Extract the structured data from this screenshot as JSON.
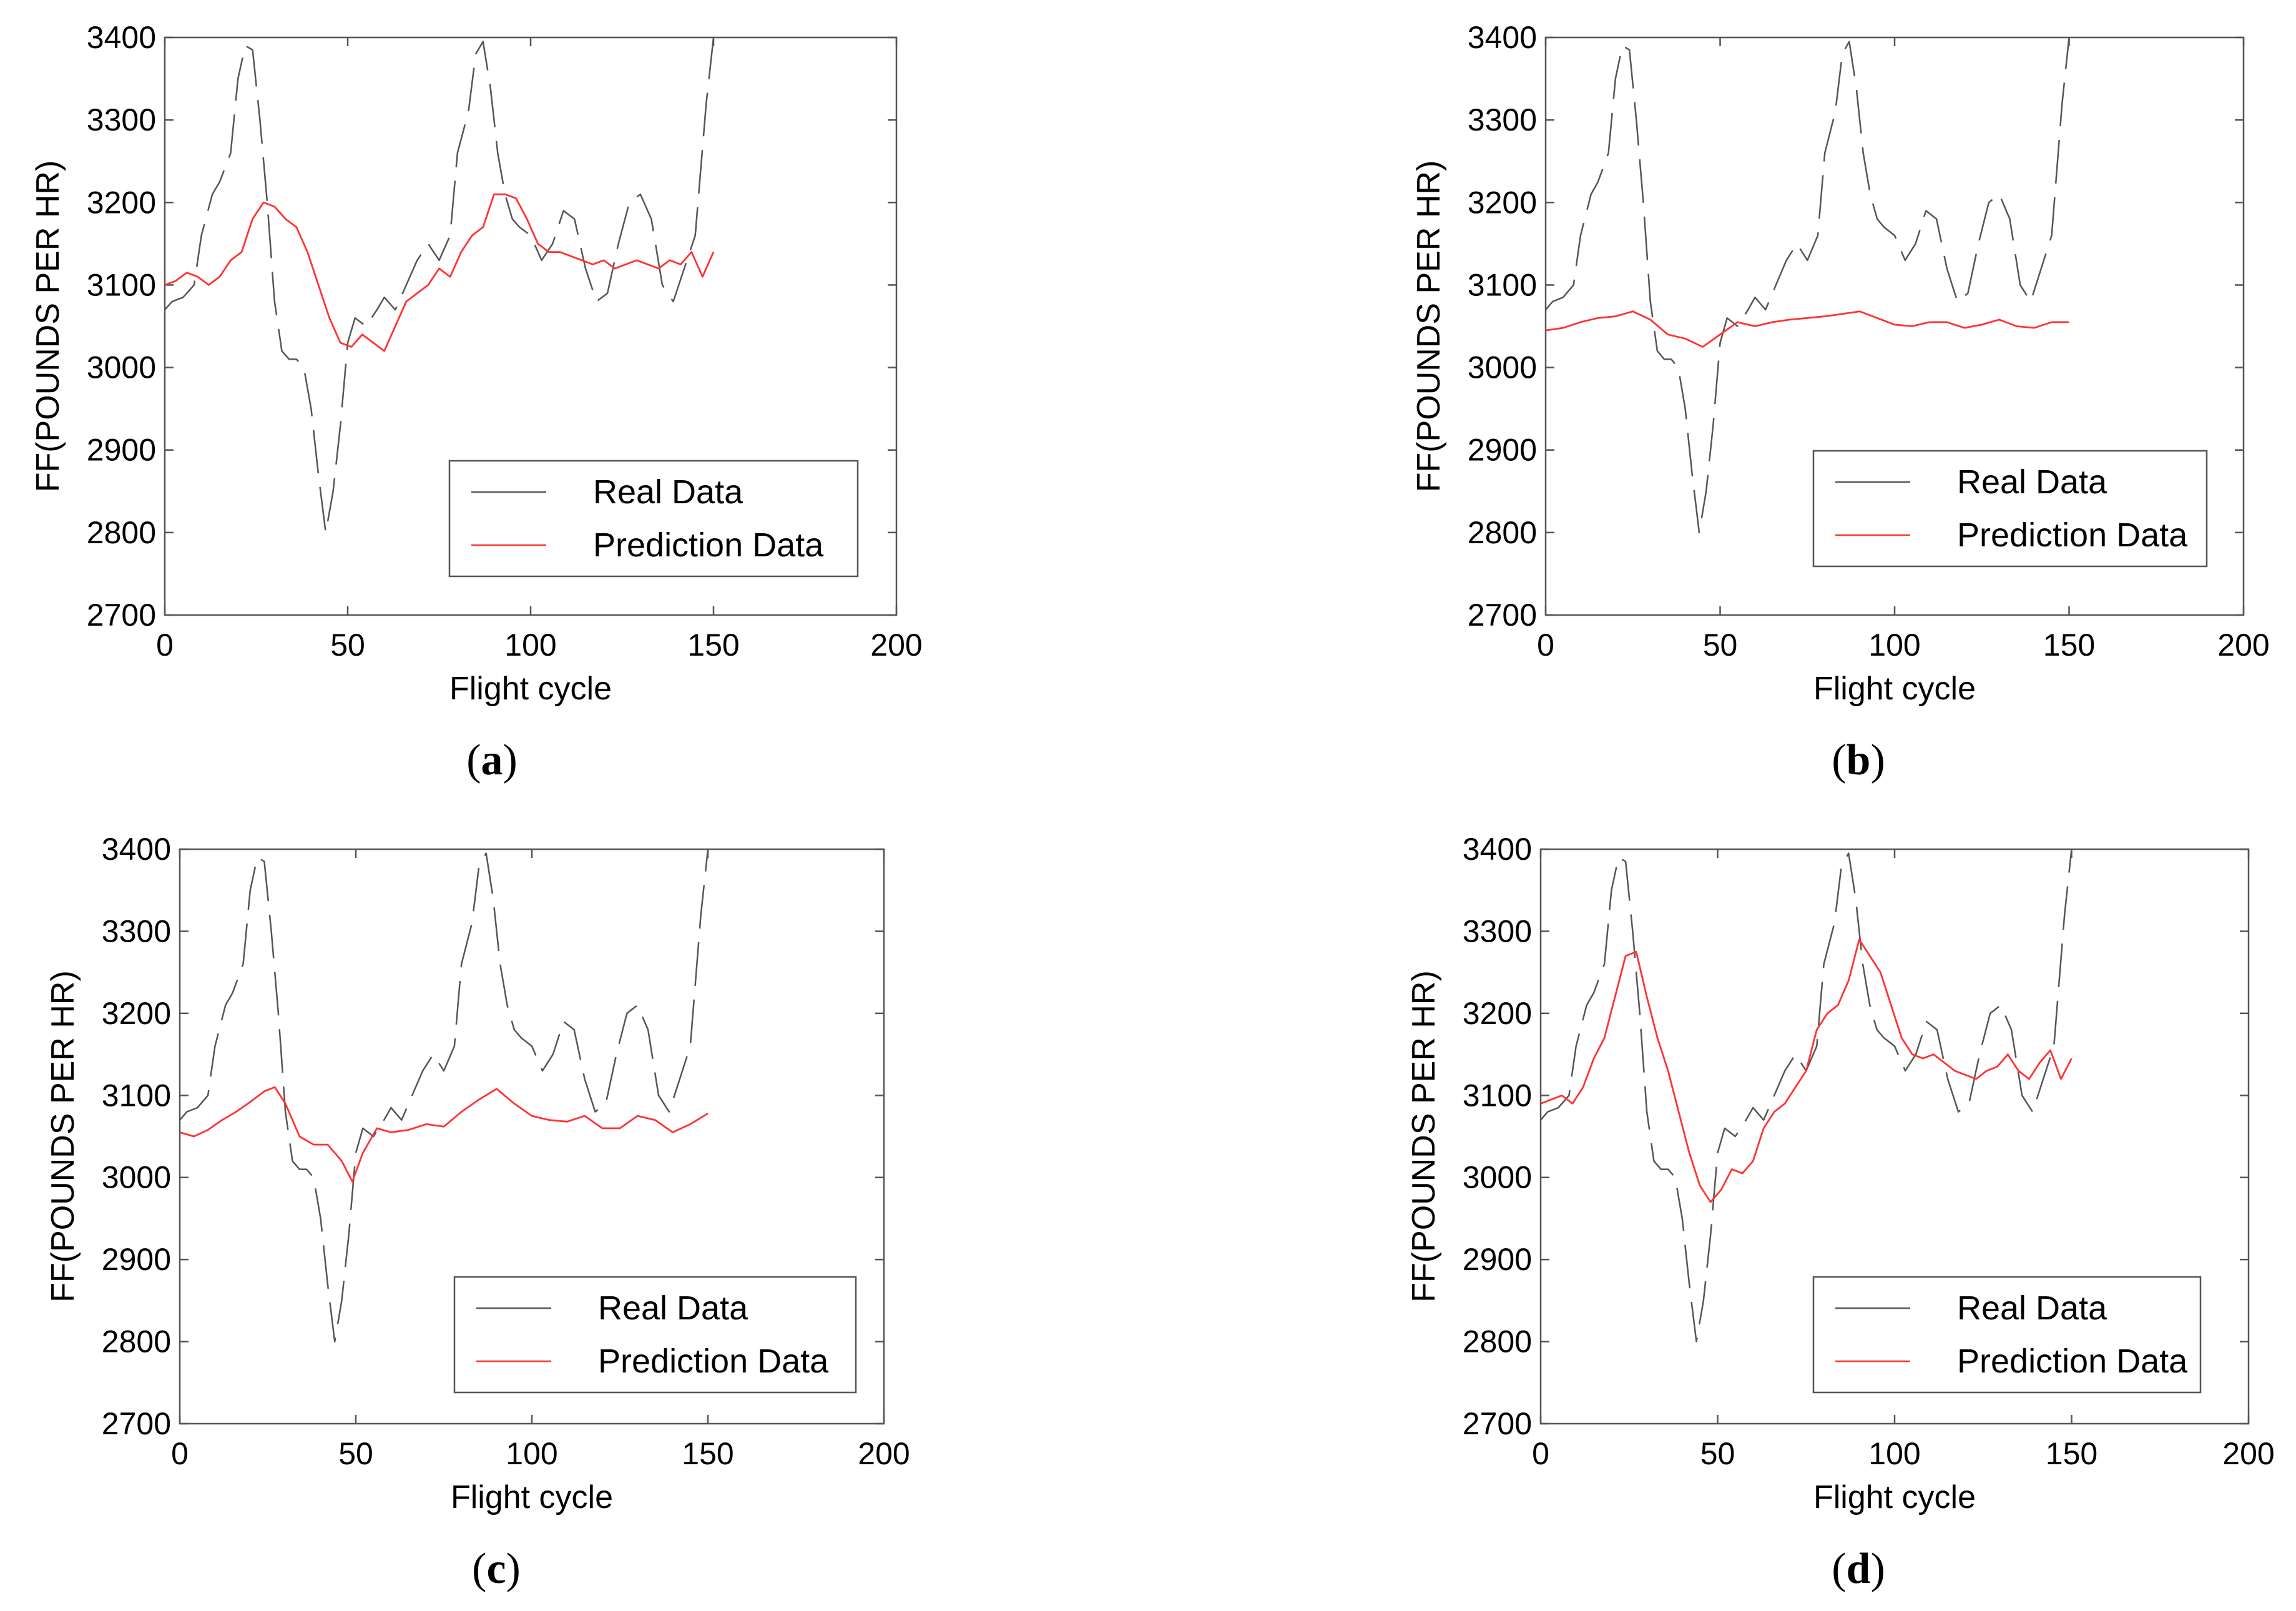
{
  "figure": {
    "panels": [
      {
        "caption_open": "(",
        "caption_letter": "a",
        "caption_close": ")",
        "chart_key": 0
      },
      {
        "caption_open": "(",
        "caption_letter": "b",
        "caption_close": ")",
        "chart_key": 1
      },
      {
        "caption_open": "(",
        "caption_letter": "c",
        "caption_close": ")",
        "chart_key": 2
      },
      {
        "caption_open": "(",
        "caption_letter": "d",
        "caption_close": ")",
        "chart_key": 3
      }
    ]
  },
  "chart_data": [
    {
      "type": "line",
      "title": "",
      "xlabel": "Flight cycle",
      "ylabel": "FF(POUNDS PER HR)",
      "xlim": [
        0,
        200
      ],
      "ylim": [
        2700,
        3400
      ],
      "xticks": [
        0,
        50,
        100,
        150,
        200
      ],
      "yticks": [
        2700,
        2800,
        2900,
        3000,
        3100,
        3200,
        3300,
        3400
      ],
      "legend_position": "lower-right",
      "series": [
        {
          "name": "Real Data",
          "color": "#555555",
          "style": "dashed",
          "x": [
            0,
            2,
            5,
            8,
            10,
            13,
            15,
            18,
            20,
            22,
            24,
            26,
            28,
            30,
            32,
            34,
            36,
            38,
            40,
            42,
            44,
            46,
            48,
            50,
            52,
            55,
            58,
            60,
            63,
            66,
            69,
            72,
            75,
            78,
            80,
            83,
            85,
            87,
            89,
            91,
            93,
            95,
            97,
            100,
            103,
            106,
            109,
            112,
            115,
            118,
            121,
            124,
            127,
            130,
            133,
            136,
            139,
            142,
            145,
            148,
            150
          ],
          "y": [
            3070,
            3080,
            3085,
            3100,
            3160,
            3210,
            3225,
            3260,
            3350,
            3390,
            3385,
            3300,
            3200,
            3080,
            3020,
            3010,
            3010,
            3000,
            2950,
            2870,
            2800,
            2850,
            2930,
            3030,
            3060,
            3050,
            3070,
            3085,
            3070,
            3100,
            3130,
            3150,
            3130,
            3160,
            3260,
            3310,
            3380,
            3395,
            3340,
            3260,
            3210,
            3180,
            3170,
            3160,
            3130,
            3150,
            3190,
            3180,
            3120,
            3080,
            3090,
            3150,
            3200,
            3210,
            3180,
            3100,
            3080,
            3120,
            3160,
            3320,
            3400
          ]
        },
        {
          "name": "Prediction Data",
          "color": "#ff3333",
          "style": "solid",
          "x": [
            0,
            3,
            6,
            9,
            12,
            15,
            18,
            21,
            24,
            27,
            30,
            33,
            36,
            39,
            42,
            45,
            48,
            51,
            54,
            57,
            60,
            63,
            66,
            69,
            72,
            75,
            78,
            81,
            84,
            87,
            90,
            93,
            96,
            99,
            102,
            105,
            108,
            111,
            114,
            117,
            120,
            123,
            126,
            129,
            132,
            135,
            138,
            141,
            144,
            147,
            150
          ],
          "y": [
            3100,
            3105,
            3115,
            3110,
            3100,
            3110,
            3130,
            3140,
            3180,
            3200,
            3195,
            3180,
            3170,
            3140,
            3100,
            3060,
            3030,
            3025,
            3040,
            3030,
            3020,
            3050,
            3080,
            3090,
            3100,
            3120,
            3110,
            3140,
            3160,
            3170,
            3210,
            3210,
            3205,
            3180,
            3150,
            3140,
            3140,
            3135,
            3130,
            3125,
            3130,
            3120,
            3125,
            3130,
            3125,
            3120,
            3130,
            3125,
            3140,
            3110,
            3140
          ]
        }
      ]
    },
    {
      "type": "line",
      "title": "",
      "xlabel": "Flight cycle",
      "ylabel": "FF(POUNDS PER HR)",
      "xlim": [
        0,
        200
      ],
      "ylim": [
        2700,
        3400
      ],
      "xticks": [
        0,
        50,
        100,
        150,
        200
      ],
      "yticks": [
        2700,
        2800,
        2900,
        3000,
        3100,
        3200,
        3300,
        3400
      ],
      "legend_position": "lower-right",
      "series": [
        {
          "name": "Real Data",
          "color": "#555555",
          "style": "dashed",
          "x": [
            0,
            2,
            5,
            8,
            10,
            13,
            15,
            18,
            20,
            22,
            24,
            26,
            28,
            30,
            32,
            34,
            36,
            38,
            40,
            42,
            44,
            46,
            48,
            50,
            52,
            55,
            58,
            60,
            63,
            66,
            69,
            72,
            75,
            78,
            80,
            83,
            85,
            87,
            89,
            91,
            93,
            95,
            97,
            100,
            103,
            106,
            109,
            112,
            115,
            118,
            121,
            124,
            127,
            130,
            133,
            136,
            139,
            142,
            145,
            148,
            150
          ],
          "y": [
            3070,
            3080,
            3085,
            3100,
            3160,
            3210,
            3225,
            3260,
            3350,
            3390,
            3385,
            3300,
            3200,
            3080,
            3020,
            3010,
            3010,
            3000,
            2950,
            2870,
            2800,
            2850,
            2930,
            3030,
            3060,
            3050,
            3070,
            3085,
            3070,
            3100,
            3130,
            3150,
            3130,
            3160,
            3260,
            3310,
            3380,
            3395,
            3340,
            3260,
            3210,
            3180,
            3170,
            3160,
            3130,
            3150,
            3190,
            3180,
            3120,
            3080,
            3090,
            3150,
            3200,
            3210,
            3180,
            3100,
            3080,
            3120,
            3160,
            3320,
            3400
          ]
        },
        {
          "name": "Prediction Data",
          "color": "#ff3333",
          "style": "solid",
          "x": [
            0,
            5,
            10,
            15,
            20,
            25,
            30,
            35,
            40,
            45,
            50,
            55,
            60,
            65,
            70,
            75,
            80,
            85,
            90,
            95,
            100,
            105,
            110,
            115,
            120,
            125,
            130,
            135,
            140,
            145,
            150
          ],
          "y": [
            3045,
            3048,
            3055,
            3060,
            3062,
            3068,
            3058,
            3040,
            3035,
            3025,
            3040,
            3055,
            3050,
            3055,
            3058,
            3060,
            3062,
            3065,
            3068,
            3060,
            3052,
            3050,
            3055,
            3055,
            3048,
            3052,
            3058,
            3050,
            3048,
            3055,
            3055
          ]
        }
      ]
    },
    {
      "type": "line",
      "title": "",
      "xlabel": "Flight cycle",
      "ylabel": "FF(POUNDS PER HR)",
      "xlim": [
        0,
        200
      ],
      "ylim": [
        2700,
        3400
      ],
      "xticks": [
        0,
        50,
        100,
        150,
        200
      ],
      "yticks": [
        2700,
        2800,
        2900,
        3000,
        3100,
        3200,
        3300,
        3400
      ],
      "legend_position": "lower-right",
      "series": [
        {
          "name": "Real Data",
          "color": "#555555",
          "style": "dashed",
          "x": [
            0,
            2,
            5,
            8,
            10,
            13,
            15,
            18,
            20,
            22,
            24,
            26,
            28,
            30,
            32,
            34,
            36,
            38,
            40,
            42,
            44,
            46,
            48,
            50,
            52,
            55,
            58,
            60,
            63,
            66,
            69,
            72,
            75,
            78,
            80,
            83,
            85,
            87,
            89,
            91,
            93,
            95,
            97,
            100,
            103,
            106,
            109,
            112,
            115,
            118,
            121,
            124,
            127,
            130,
            133,
            136,
            139,
            142,
            145,
            148,
            150
          ],
          "y": [
            3070,
            3080,
            3085,
            3100,
            3160,
            3210,
            3225,
            3260,
            3350,
            3390,
            3385,
            3300,
            3200,
            3080,
            3020,
            3010,
            3010,
            3000,
            2950,
            2870,
            2800,
            2850,
            2930,
            3030,
            3060,
            3050,
            3070,
            3085,
            3070,
            3100,
            3130,
            3150,
            3130,
            3160,
            3260,
            3310,
            3380,
            3395,
            3340,
            3260,
            3210,
            3180,
            3170,
            3160,
            3130,
            3150,
            3190,
            3180,
            3120,
            3080,
            3090,
            3150,
            3200,
            3210,
            3180,
            3100,
            3080,
            3120,
            3160,
            3320,
            3400
          ]
        },
        {
          "name": "Prediction Data",
          "color": "#ff3333",
          "style": "solid",
          "x": [
            0,
            4,
            8,
            12,
            16,
            20,
            24,
            27,
            30,
            34,
            38,
            42,
            46,
            49,
            52,
            56,
            60,
            65,
            70,
            75,
            80,
            85,
            90,
            95,
            100,
            105,
            110,
            115,
            120,
            125,
            130,
            135,
            140,
            145,
            150
          ],
          "y": [
            3055,
            3050,
            3058,
            3070,
            3080,
            3092,
            3105,
            3110,
            3090,
            3050,
            3040,
            3040,
            3020,
            2995,
            3030,
            3060,
            3055,
            3058,
            3065,
            3062,
            3080,
            3095,
            3108,
            3090,
            3075,
            3070,
            3068,
            3075,
            3060,
            3060,
            3075,
            3070,
            3055,
            3065,
            3078
          ]
        }
      ]
    },
    {
      "type": "line",
      "title": "",
      "xlabel": "Flight cycle",
      "ylabel": "FF(POUNDS PER HR)",
      "xlim": [
        0,
        200
      ],
      "ylim": [
        2700,
        3400
      ],
      "xticks": [
        0,
        50,
        100,
        150,
        200
      ],
      "yticks": [
        2700,
        2800,
        2900,
        3000,
        3100,
        3200,
        3300,
        3400
      ],
      "legend_position": "lower-right",
      "series": [
        {
          "name": "Real Data",
          "color": "#555555",
          "style": "dashed",
          "x": [
            0,
            2,
            5,
            8,
            10,
            13,
            15,
            18,
            20,
            22,
            24,
            26,
            28,
            30,
            32,
            34,
            36,
            38,
            40,
            42,
            44,
            46,
            48,
            50,
            52,
            55,
            58,
            60,
            63,
            66,
            69,
            72,
            75,
            78,
            80,
            83,
            85,
            87,
            89,
            91,
            93,
            95,
            97,
            100,
            103,
            106,
            109,
            112,
            115,
            118,
            121,
            124,
            127,
            130,
            133,
            136,
            139,
            142,
            145,
            148,
            150
          ],
          "y": [
            3070,
            3080,
            3085,
            3100,
            3160,
            3210,
            3225,
            3260,
            3350,
            3390,
            3385,
            3300,
            3200,
            3080,
            3020,
            3010,
            3010,
            3000,
            2950,
            2870,
            2800,
            2850,
            2930,
            3030,
            3060,
            3050,
            3070,
            3085,
            3070,
            3100,
            3130,
            3150,
            3130,
            3160,
            3260,
            3310,
            3380,
            3395,
            3340,
            3260,
            3210,
            3180,
            3170,
            3160,
            3130,
            3150,
            3190,
            3180,
            3120,
            3080,
            3090,
            3150,
            3200,
            3210,
            3180,
            3100,
            3080,
            3120,
            3160,
            3320,
            3400
          ]
        },
        {
          "name": "Prediction Data",
          "color": "#ff3333",
          "style": "solid",
          "x": [
            0,
            3,
            6,
            9,
            12,
            15,
            18,
            21,
            24,
            27,
            30,
            33,
            36,
            39,
            42,
            45,
            48,
            51,
            54,
            57,
            60,
            63,
            66,
            69,
            72,
            75,
            78,
            81,
            84,
            87,
            90,
            93,
            96,
            99,
            102,
            105,
            108,
            111,
            114,
            117,
            120,
            123,
            126,
            129,
            132,
            135,
            138,
            141,
            144,
            147,
            150
          ],
          "y": [
            3090,
            3095,
            3100,
            3090,
            3110,
            3145,
            3170,
            3220,
            3270,
            3275,
            3220,
            3170,
            3130,
            3080,
            3030,
            2990,
            2970,
            2985,
            3010,
            3005,
            3020,
            3060,
            3080,
            3090,
            3110,
            3130,
            3180,
            3200,
            3210,
            3240,
            3290,
            3270,
            3250,
            3210,
            3170,
            3150,
            3145,
            3150,
            3140,
            3130,
            3125,
            3120,
            3130,
            3135,
            3150,
            3130,
            3120,
            3140,
            3155,
            3120,
            3145
          ]
        }
      ]
    }
  ]
}
